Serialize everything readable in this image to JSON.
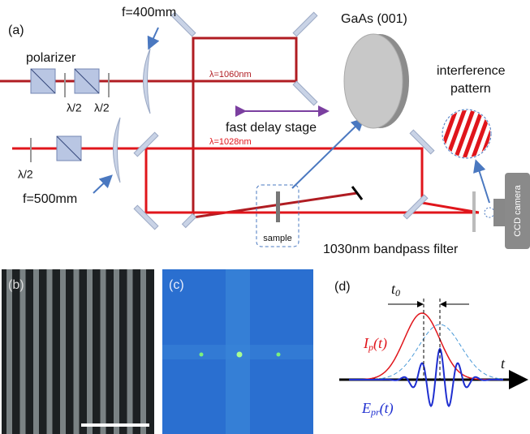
{
  "panel_a": {
    "label": "(a)",
    "polarizer": "polarizer",
    "f_top": "f=400mm",
    "half_wave": [
      "λ/2",
      "λ/2",
      "λ/2"
    ],
    "beam_top": "λ=1060nm",
    "delay": "fast delay stage",
    "crystal": "GaAs (001)",
    "pattern": [
      "interference",
      "pattern"
    ],
    "beam_bottom": "λ=1028nm",
    "f_bottom": "f=500mm",
    "sample": "sample",
    "filter": "1030nm bandpass filter",
    "camera": "CCD camera"
  },
  "panel_b": {
    "label": "(b)"
  },
  "panel_c": {
    "label": "(c)"
  },
  "panel_d": {
    "label": "(d)",
    "delay": {
      "main": "t",
      "sub": "0"
    },
    "axis": "t",
    "pump": {
      "main": "I",
      "sub": "p",
      "tail": "(t)"
    },
    "probe": {
      "main": "E",
      "sub": "pr",
      "tail": "(t)"
    }
  }
}
